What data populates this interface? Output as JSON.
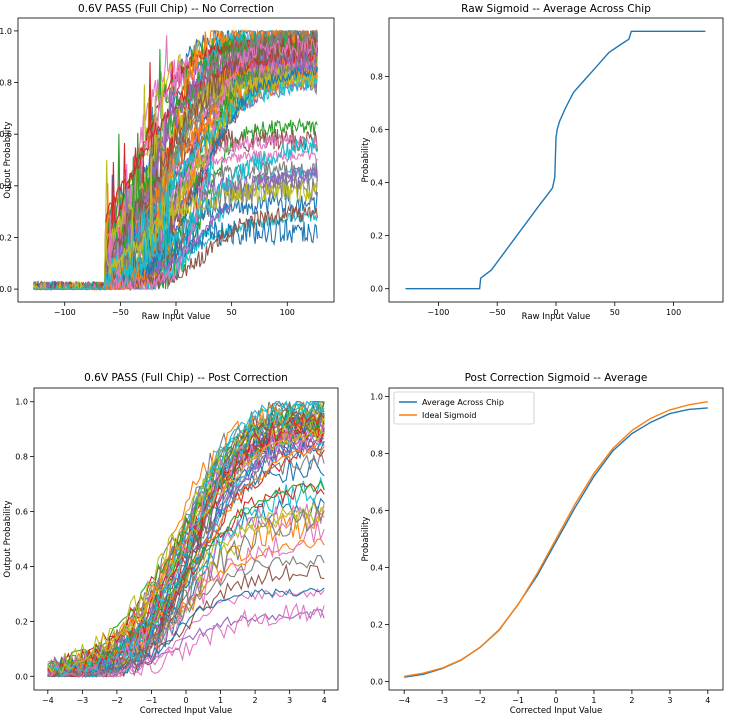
{
  "chart_data": [
    {
      "type": "line",
      "title": "0.6V PASS (Full Chip) -- No Correction",
      "xlabel": "Raw Input Value",
      "ylabel": "Output Probability",
      "xlim": [
        -142,
        142
      ],
      "ylim": [
        -0.05,
        1.05
      ],
      "xticks": [
        -100,
        -50,
        0,
        50,
        100
      ],
      "xtick_labels": [
        "−100",
        "−50",
        "0",
        "50",
        "100"
      ],
      "yticks": [
        0.0,
        0.2,
        0.4,
        0.6,
        0.8,
        1.0
      ],
      "ytick_labels": [
        "0.0",
        "0.2",
        "0.4",
        "0.6",
        "0.8",
        "1.0"
      ],
      "x_range": [
        -128,
        127
      ],
      "series_count": 60,
      "description": "one noisy sigmoid curve per chip cell; each rises from ~0 to a per-cell plateau of ~0.25-1.0"
    },
    {
      "type": "line",
      "title": "Raw Sigmoid -- Average Across Chip",
      "xlabel": "Raw Input Value",
      "ylabel": "Probability",
      "xlim": [
        -142,
        142
      ],
      "ylim": [
        -0.05,
        1.02
      ],
      "xticks": [
        -100,
        -50,
        0,
        50,
        100
      ],
      "xtick_labels": [
        "−100",
        "−50",
        "0",
        "50",
        "100"
      ],
      "yticks": [
        0.0,
        0.2,
        0.4,
        0.6,
        0.8
      ],
      "ytick_labels": [
        "0.0",
        "0.2",
        "0.4",
        "0.6",
        "0.8"
      ],
      "series": [
        {
          "name": "Average Across Chip",
          "color": "#1f77b4",
          "x": [
            -128,
            -65,
            -64,
            -55,
            -45,
            -35,
            -25,
            -15,
            -8,
            -3,
            -1,
            0,
            1,
            3,
            8,
            15,
            25,
            35,
            45,
            55,
            62,
            64,
            65,
            70,
            127
          ],
          "y": [
            0.0,
            0.0,
            0.04,
            0.07,
            0.13,
            0.19,
            0.25,
            0.31,
            0.35,
            0.38,
            0.42,
            0.57,
            0.6,
            0.63,
            0.68,
            0.74,
            0.79,
            0.84,
            0.89,
            0.92,
            0.94,
            0.97,
            0.97,
            0.97,
            0.97
          ]
        }
      ]
    },
    {
      "type": "line",
      "title": "0.6V PASS (Full Chip) -- Post Correction",
      "xlabel": "Corrected Input Value",
      "ylabel": "Output Probability",
      "xlim": [
        -4.4,
        4.4
      ],
      "ylim": [
        -0.05,
        1.05
      ],
      "xticks": [
        -4,
        -3,
        -2,
        -1,
        0,
        1,
        2,
        3,
        4
      ],
      "xtick_labels": [
        "−4",
        "−3",
        "−2",
        "−1",
        "0",
        "1",
        "2",
        "3",
        "4"
      ],
      "yticks": [
        0.0,
        0.2,
        0.4,
        0.6,
        0.8,
        1.0
      ],
      "ytick_labels": [
        "0.0",
        "0.2",
        "0.4",
        "0.6",
        "0.8",
        "1.0"
      ],
      "x_range": [
        -4,
        4
      ],
      "series_count": 60,
      "description": "one noisy corrected sigmoid curve per chip cell clustered around the ideal sigmoid"
    },
    {
      "type": "line",
      "title": "Post Correction Sigmoid -- Average",
      "xlabel": "Corrected Input Value",
      "ylabel": "Probability",
      "xlim": [
        -4.4,
        4.4
      ],
      "ylim": [
        -0.03,
        1.03
      ],
      "xticks": [
        -4,
        -3,
        -2,
        -1,
        0,
        1,
        2,
        3,
        4
      ],
      "xtick_labels": [
        "−4",
        "−3",
        "−2",
        "−1",
        "0",
        "1",
        "2",
        "3",
        "4"
      ],
      "yticks": [
        0.0,
        0.2,
        0.4,
        0.6,
        0.8,
        1.0
      ],
      "ytick_labels": [
        "0.0",
        "0.2",
        "0.4",
        "0.6",
        "0.8",
        "1.0"
      ],
      "legend": "top-left",
      "series": [
        {
          "name": "Average Across Chip",
          "color": "#1f77b4",
          "x": [
            -4,
            -3.5,
            -3,
            -2.5,
            -2,
            -1.5,
            -1,
            -0.5,
            0,
            0.5,
            1,
            1.5,
            2,
            2.5,
            3,
            3.5,
            4
          ],
          "y": [
            0.015,
            0.025,
            0.045,
            0.075,
            0.12,
            0.18,
            0.27,
            0.37,
            0.49,
            0.61,
            0.72,
            0.81,
            0.87,
            0.91,
            0.94,
            0.955,
            0.96
          ]
        },
        {
          "name": "Ideal Sigmoid",
          "color": "#ff7f0e",
          "x": [
            -4,
            -3.5,
            -3,
            -2.5,
            -2,
            -1.5,
            -1,
            -0.5,
            0,
            0.5,
            1,
            1.5,
            2,
            2.5,
            3,
            3.5,
            4
          ],
          "y": [
            0.018,
            0.029,
            0.047,
            0.076,
            0.119,
            0.182,
            0.269,
            0.378,
            0.5,
            0.622,
            0.731,
            0.818,
            0.881,
            0.924,
            0.953,
            0.971,
            0.982
          ]
        }
      ]
    }
  ]
}
